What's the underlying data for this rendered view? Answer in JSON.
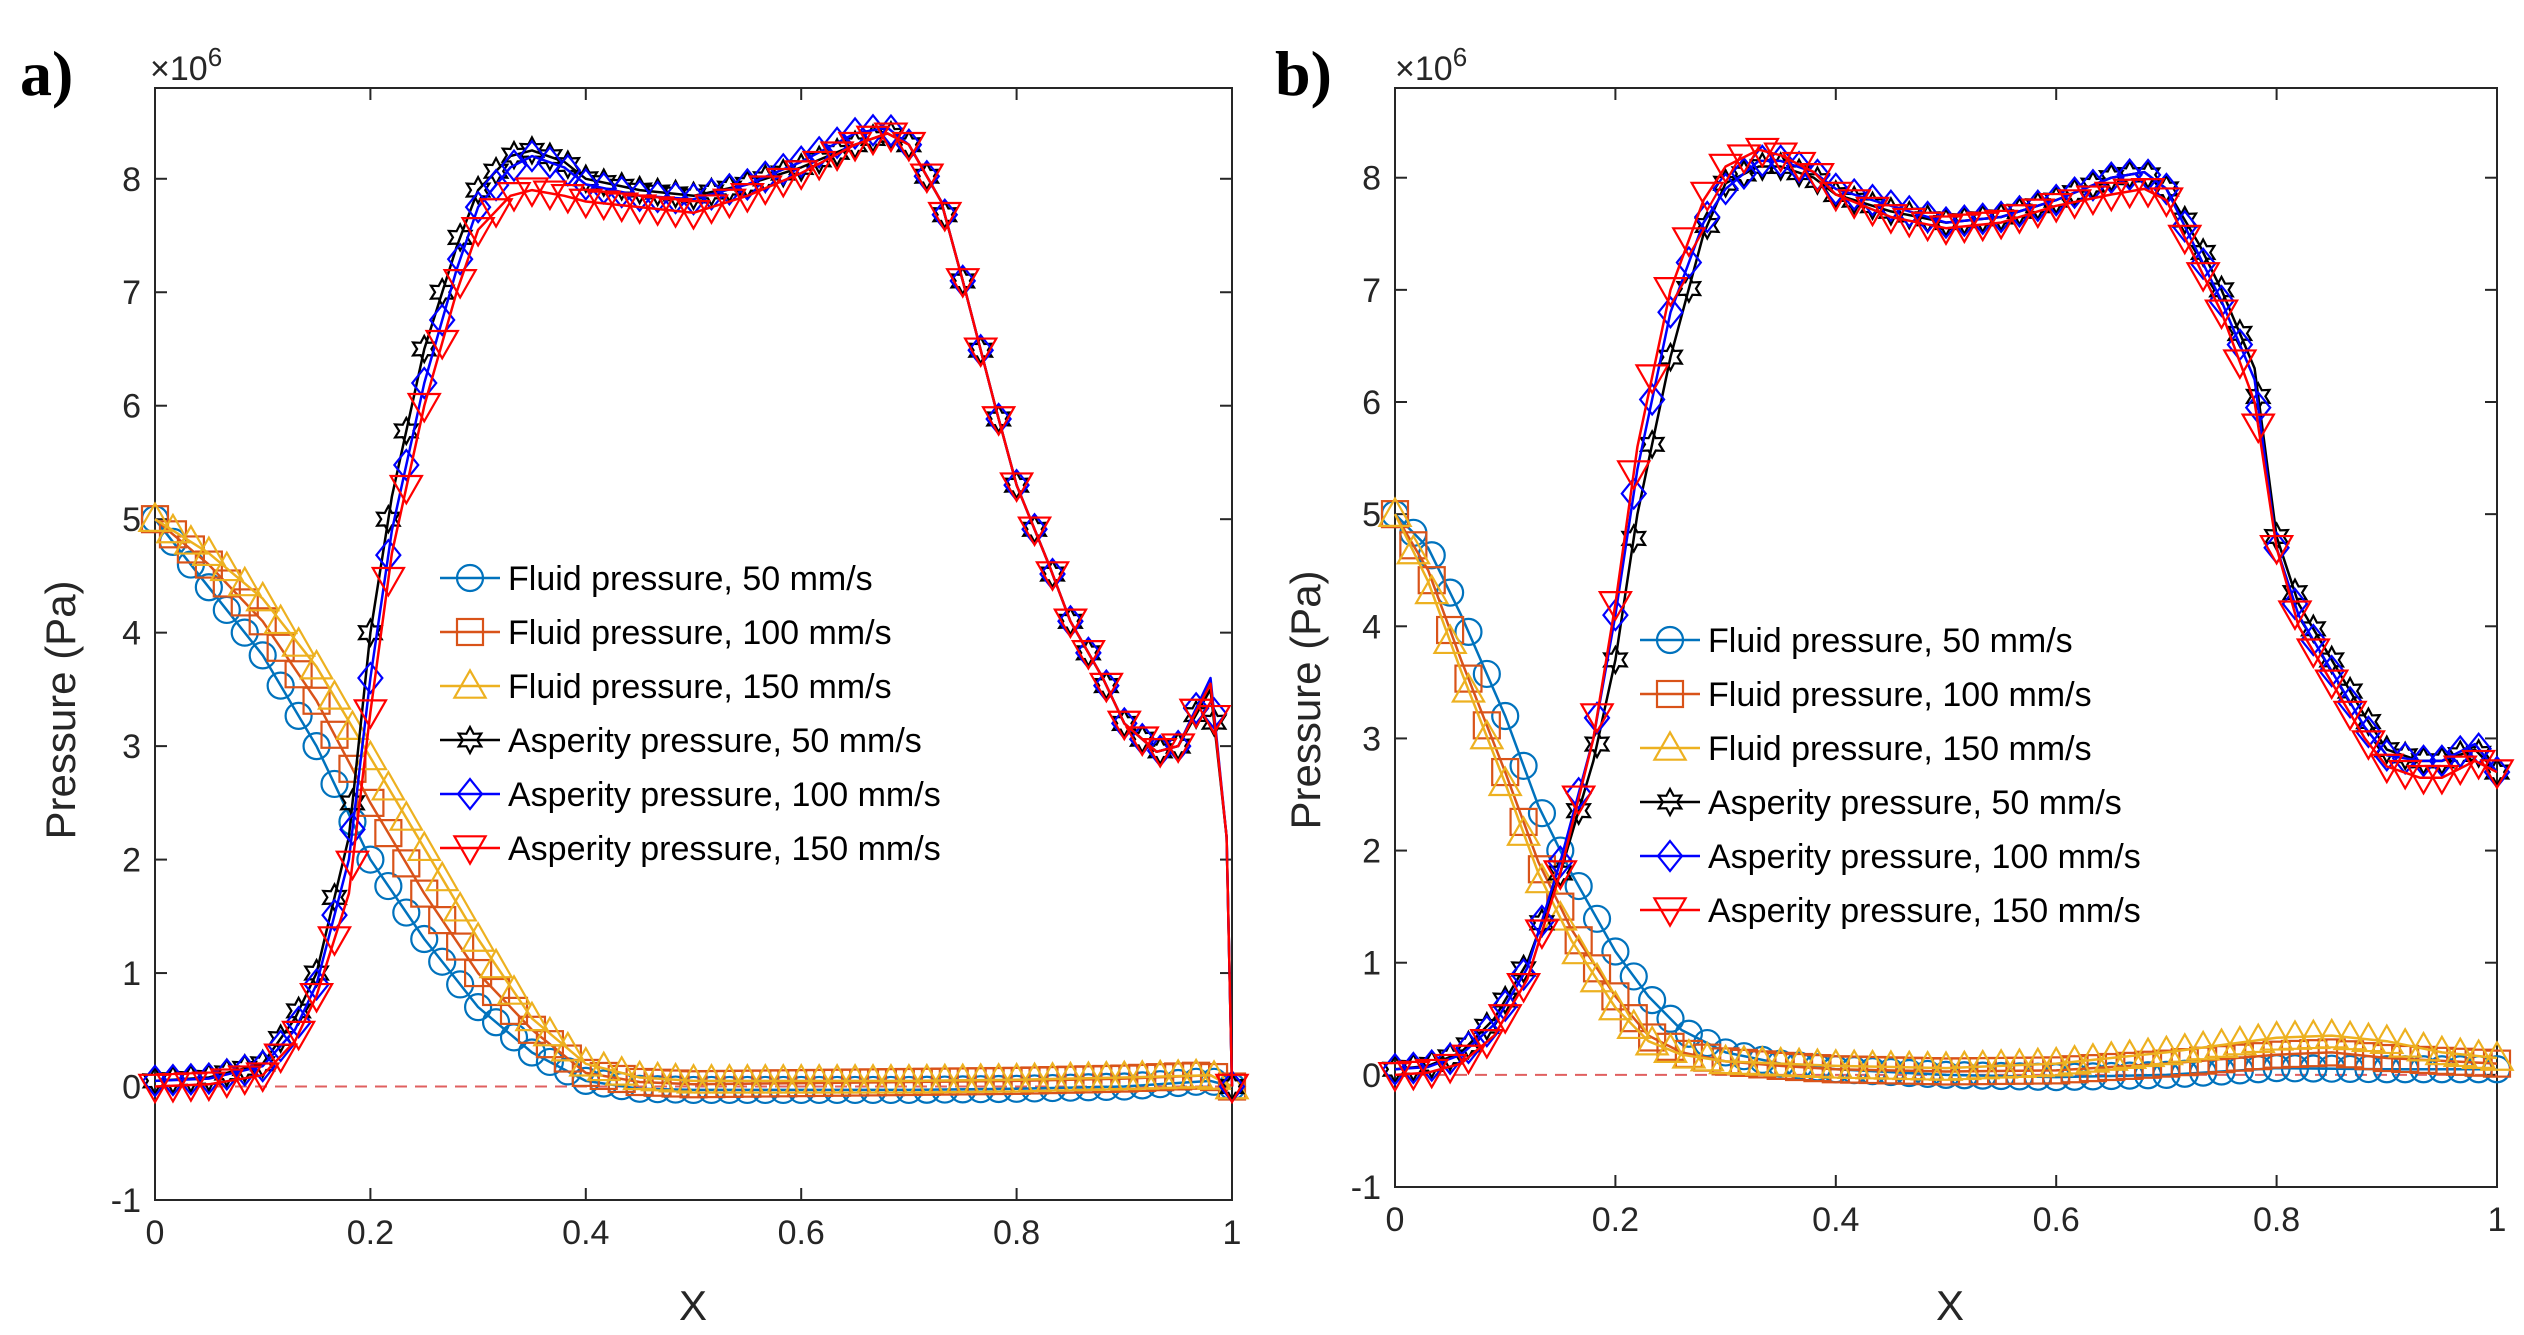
{
  "chart_data": [
    {
      "type": "line",
      "panel_label": "a)",
      "xlabel": "X",
      "ylabel": "Pressure (Pa)",
      "exponent_label": "×10",
      "exponent_power": "6",
      "xlim": [
        0,
        1
      ],
      "ylim": [
        -1,
        8.8
      ],
      "xticks": [
        "0",
        "0.2",
        "0.4",
        "0.6",
        "0.8",
        "1"
      ],
      "yticks": [
        "-1",
        "0",
        "1",
        "2",
        "3",
        "4",
        "5",
        "6",
        "7",
        "8"
      ],
      "reference_line": {
        "y": 0,
        "color": "#e06060",
        "style": "dashed"
      },
      "legend": [
        "Fluid pressure, 50 mm/s",
        "Fluid pressure, 100 mm/s",
        "Fluid pressure, 150 mm/s",
        "Asperity pressure, 50 mm/s",
        "Asperity pressure, 100 mm/s",
        "Asperity pressure, 150 mm/s"
      ],
      "series": [
        {
          "name": "Fluid pressure, 50 mm/s",
          "color": "#0072BD",
          "marker": "circle",
          "x": [
            0,
            0.05,
            0.1,
            0.15,
            0.2,
            0.25,
            0.3,
            0.35,
            0.4,
            0.45,
            0.5,
            0.6,
            0.7,
            0.8,
            0.9,
            0.98,
            1.0
          ],
          "y": [
            5.0,
            4.4,
            3.8,
            3.0,
            2.0,
            1.3,
            0.7,
            0.3,
            0.05,
            -0.02,
            -0.03,
            -0.03,
            -0.03,
            -0.02,
            0.0,
            0.05,
            0.0
          ]
        },
        {
          "name": "Fluid pressure, 100 mm/s",
          "color": "#D95319",
          "marker": "square",
          "x": [
            0,
            0.05,
            0.1,
            0.15,
            0.2,
            0.25,
            0.3,
            0.35,
            0.4,
            0.45,
            0.5,
            0.6,
            0.7,
            0.8,
            0.9,
            0.98,
            1.0
          ],
          "y": [
            5.0,
            4.6,
            4.1,
            3.4,
            2.5,
            1.7,
            1.0,
            0.5,
            0.12,
            0.04,
            0.02,
            0.03,
            0.04,
            0.05,
            0.07,
            0.1,
            0.0
          ]
        },
        {
          "name": "Fluid pressure, 150 mm/s",
          "color": "#EDB120",
          "marker": "triangle-up",
          "x": [
            0,
            0.05,
            0.1,
            0.15,
            0.2,
            0.25,
            0.3,
            0.35,
            0.4,
            0.45,
            0.5,
            0.6,
            0.7,
            0.8,
            0.9,
            0.98,
            1.0
          ],
          "y": [
            5.0,
            4.7,
            4.3,
            3.7,
            2.9,
            2.1,
            1.3,
            0.6,
            0.2,
            0.08,
            0.05,
            0.05,
            0.05,
            0.06,
            0.08,
            0.1,
            0.0
          ]
        },
        {
          "name": "Asperity pressure, 50 mm/s",
          "color": "#000000",
          "marker": "hexagram",
          "x": [
            0,
            0.05,
            0.1,
            0.13,
            0.15,
            0.18,
            0.2,
            0.22,
            0.25,
            0.28,
            0.3,
            0.33,
            0.35,
            0.38,
            0.4,
            0.45,
            0.5,
            0.55,
            0.6,
            0.65,
            0.68,
            0.7,
            0.73,
            0.75,
            0.78,
            0.8,
            0.83,
            0.85,
            0.88,
            0.9,
            0.93,
            0.95,
            0.98,
            0.995,
            1.0
          ],
          "y": [
            0.05,
            0.08,
            0.2,
            0.6,
            1.0,
            2.2,
            4.0,
            5.2,
            6.5,
            7.4,
            7.9,
            8.2,
            8.25,
            8.15,
            8.0,
            7.9,
            7.85,
            7.95,
            8.1,
            8.3,
            8.4,
            8.3,
            7.8,
            7.1,
            6.0,
            5.3,
            4.6,
            4.1,
            3.6,
            3.2,
            2.95,
            3.0,
            3.5,
            2.2,
            0.0
          ]
        },
        {
          "name": "Asperity pressure, 100 mm/s",
          "color": "#0000FF",
          "marker": "diamond",
          "x": [
            0,
            0.05,
            0.1,
            0.13,
            0.15,
            0.18,
            0.2,
            0.22,
            0.25,
            0.28,
            0.3,
            0.33,
            0.35,
            0.38,
            0.4,
            0.45,
            0.5,
            0.55,
            0.6,
            0.65,
            0.68,
            0.7,
            0.73,
            0.75,
            0.78,
            0.8,
            0.83,
            0.85,
            0.88,
            0.9,
            0.93,
            0.95,
            0.98,
            0.995,
            1.0
          ],
          "y": [
            0.05,
            0.07,
            0.18,
            0.5,
            0.9,
            2.0,
            3.6,
            4.9,
            6.2,
            7.2,
            7.75,
            8.1,
            8.2,
            8.1,
            7.95,
            7.85,
            7.82,
            7.95,
            8.15,
            8.4,
            8.45,
            8.3,
            7.8,
            7.1,
            6.0,
            5.3,
            4.6,
            4.1,
            3.6,
            3.2,
            2.95,
            3.0,
            3.6,
            2.2,
            0.0
          ]
        },
        {
          "name": "Asperity pressure, 150 mm/s",
          "color": "#FF0000",
          "marker": "triangle-down",
          "x": [
            0,
            0.05,
            0.1,
            0.13,
            0.15,
            0.18,
            0.2,
            0.22,
            0.25,
            0.28,
            0.3,
            0.33,
            0.35,
            0.38,
            0.4,
            0.45,
            0.5,
            0.55,
            0.6,
            0.65,
            0.68,
            0.7,
            0.73,
            0.75,
            0.78,
            0.8,
            0.83,
            0.85,
            0.88,
            0.9,
            0.93,
            0.95,
            0.98,
            0.995,
            1.0
          ],
          "y": [
            0.0,
            0.02,
            0.1,
            0.4,
            0.8,
            1.7,
            3.3,
            4.7,
            6.0,
            7.0,
            7.55,
            7.85,
            7.9,
            7.85,
            7.8,
            7.75,
            7.7,
            7.85,
            8.05,
            8.3,
            8.4,
            8.3,
            7.8,
            7.1,
            6.0,
            5.3,
            4.6,
            4.1,
            3.6,
            3.2,
            2.95,
            3.0,
            3.55,
            2.2,
            0.0
          ]
        }
      ]
    },
    {
      "type": "line",
      "panel_label": "b)",
      "xlabel": "X",
      "ylabel": "Pressure (Pa)",
      "exponent_label": "×10",
      "exponent_power": "6",
      "xlim": [
        0,
        1
      ],
      "ylim": [
        -1,
        8.8
      ],
      "xticks": [
        "0",
        "0.2",
        "0.4",
        "0.6",
        "0.8",
        "1"
      ],
      "yticks": [
        "-1",
        "0",
        "1",
        "2",
        "3",
        "4",
        "5",
        "6",
        "7",
        "8"
      ],
      "reference_line": {
        "y": 0,
        "color": "#e06060",
        "style": "dashed"
      },
      "legend": [
        "Fluid pressure, 50 mm/s",
        "Fluid pressure, 100 mm/s",
        "Fluid pressure, 150 mm/s",
        "Asperity pressure, 50 mm/s",
        "Asperity pressure, 100 mm/s",
        "Asperity pressure, 150 mm/s"
      ],
      "series": [
        {
          "name": "Fluid pressure, 50 mm/s",
          "color": "#0072BD",
          "marker": "circle",
          "x": [
            0,
            0.03,
            0.06,
            0.1,
            0.13,
            0.16,
            0.2,
            0.23,
            0.26,
            0.3,
            0.35,
            0.4,
            0.5,
            0.6,
            0.7,
            0.8,
            0.9,
            1.0
          ],
          "y": [
            5.0,
            4.7,
            4.1,
            3.2,
            2.4,
            1.8,
            1.1,
            0.7,
            0.4,
            0.2,
            0.1,
            0.05,
            0.0,
            -0.02,
            0.0,
            0.06,
            0.05,
            0.05
          ]
        },
        {
          "name": "Fluid pressure, 100 mm/s",
          "color": "#D95319",
          "marker": "square",
          "x": [
            0,
            0.03,
            0.06,
            0.1,
            0.13,
            0.16,
            0.2,
            0.23,
            0.26,
            0.3,
            0.35,
            0.4,
            0.5,
            0.6,
            0.7,
            0.8,
            0.85,
            0.9,
            1.0
          ],
          "y": [
            5.0,
            4.5,
            3.7,
            2.7,
            1.9,
            1.3,
            0.7,
            0.35,
            0.2,
            0.12,
            0.08,
            0.05,
            0.03,
            0.04,
            0.1,
            0.18,
            0.2,
            0.15,
            0.1
          ]
        },
        {
          "name": "Fluid pressure, 150 mm/s",
          "color": "#EDB120",
          "marker": "triangle-up",
          "x": [
            0,
            0.03,
            0.06,
            0.1,
            0.13,
            0.16,
            0.2,
            0.23,
            0.26,
            0.3,
            0.35,
            0.4,
            0.5,
            0.6,
            0.7,
            0.8,
            0.85,
            0.9,
            0.95,
            1.0
          ],
          "y": [
            5.0,
            4.4,
            3.6,
            2.6,
            1.8,
            1.2,
            0.6,
            0.3,
            0.18,
            0.12,
            0.1,
            0.08,
            0.06,
            0.1,
            0.2,
            0.33,
            0.35,
            0.3,
            0.2,
            0.15
          ]
        },
        {
          "name": "Asperity pressure, 50 mm/s",
          "color": "#000000",
          "marker": "hexagram",
          "x": [
            0,
            0.03,
            0.06,
            0.09,
            0.12,
            0.15,
            0.18,
            0.2,
            0.22,
            0.25,
            0.28,
            0.3,
            0.33,
            0.35,
            0.38,
            0.4,
            0.45,
            0.5,
            0.55,
            0.6,
            0.65,
            0.68,
            0.7,
            0.73,
            0.75,
            0.78,
            0.8,
            0.82,
            0.85,
            0.88,
            0.9,
            0.93,
            0.95,
            0.98,
            1.0
          ],
          "y": [
            0.05,
            0.08,
            0.2,
            0.5,
            1.0,
            1.8,
            2.8,
            3.7,
            5.0,
            6.4,
            7.5,
            7.95,
            8.1,
            8.1,
            8.0,
            7.85,
            7.7,
            7.6,
            7.65,
            7.8,
            8.0,
            8.05,
            7.9,
            7.4,
            7.0,
            6.3,
            4.8,
            4.2,
            3.7,
            3.2,
            2.9,
            2.8,
            2.8,
            2.9,
            2.7
          ]
        },
        {
          "name": "Asperity pressure, 100 mm/s",
          "color": "#0000FF",
          "marker": "diamond",
          "x": [
            0,
            0.03,
            0.06,
            0.09,
            0.12,
            0.15,
            0.18,
            0.2,
            0.22,
            0.25,
            0.28,
            0.3,
            0.33,
            0.35,
            0.38,
            0.4,
            0.45,
            0.5,
            0.55,
            0.6,
            0.65,
            0.68,
            0.7,
            0.73,
            0.75,
            0.78,
            0.8,
            0.82,
            0.85,
            0.88,
            0.9,
            0.93,
            0.95,
            0.98,
            1.0
          ],
          "y": [
            0.05,
            0.07,
            0.18,
            0.45,
            0.95,
            1.9,
            3.0,
            4.1,
            5.4,
            6.8,
            7.6,
            7.9,
            8.15,
            8.15,
            8.05,
            7.9,
            7.75,
            7.6,
            7.65,
            7.8,
            8.0,
            8.05,
            7.9,
            7.3,
            6.9,
            6.2,
            4.7,
            4.1,
            3.6,
            3.1,
            2.85,
            2.8,
            2.8,
            2.95,
            2.7
          ]
        },
        {
          "name": "Asperity pressure, 150 mm/s",
          "color": "#FF0000",
          "marker": "triangle-down",
          "x": [
            0,
            0.03,
            0.06,
            0.09,
            0.12,
            0.15,
            0.18,
            0.2,
            0.22,
            0.25,
            0.28,
            0.3,
            0.33,
            0.35,
            0.38,
            0.4,
            0.45,
            0.5,
            0.55,
            0.6,
            0.65,
            0.68,
            0.7,
            0.73,
            0.75,
            0.78,
            0.8,
            0.82,
            0.85,
            0.88,
            0.9,
            0.93,
            0.95,
            0.98,
            1.0
          ],
          "y": [
            0.0,
            0.02,
            0.1,
            0.35,
            0.85,
            1.8,
            3.0,
            4.2,
            5.6,
            7.0,
            7.8,
            8.1,
            8.25,
            8.2,
            8.05,
            7.85,
            7.65,
            7.55,
            7.6,
            7.75,
            7.85,
            7.9,
            7.8,
            7.2,
            6.8,
            6.0,
            4.7,
            4.0,
            3.5,
            3.0,
            2.75,
            2.65,
            2.65,
            2.8,
            2.7
          ]
        }
      ]
    }
  ]
}
